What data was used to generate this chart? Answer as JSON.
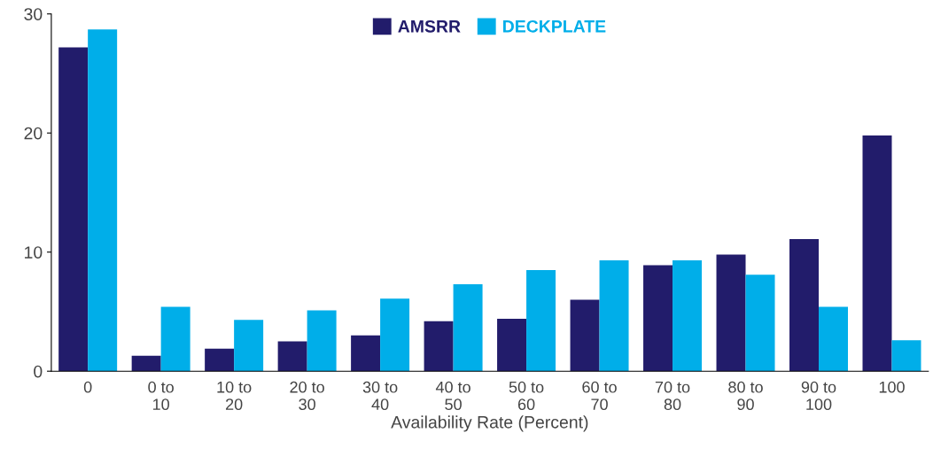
{
  "chart_data": {
    "type": "bar",
    "xlabel": "Availability Rate (Percent)",
    "categories": [
      "0",
      "0 to\n10",
      "10 to\n20",
      "20 to\n30",
      "30 to\n40",
      "40 to\n50",
      "50 to\n60",
      "60 to\n70",
      "70 to\n80",
      "80 to\n90",
      "90 to\n100",
      "100"
    ],
    "series": [
      {
        "name": "AMSRR",
        "color": "#221c6b",
        "values": [
          27.2,
          1.3,
          1.9,
          2.5,
          3.0,
          4.2,
          4.4,
          6.0,
          8.9,
          9.8,
          11.1,
          19.8
        ]
      },
      {
        "name": "DECKPLATE",
        "color": "#00aee9",
        "values": [
          28.7,
          5.4,
          4.3,
          5.1,
          6.1,
          7.3,
          8.5,
          9.3,
          9.3,
          8.1,
          5.4,
          2.6
        ]
      }
    ],
    "ylim": [
      0,
      30
    ],
    "yticks": [
      0,
      10,
      20,
      30
    ],
    "grid": false,
    "legend": "top"
  }
}
